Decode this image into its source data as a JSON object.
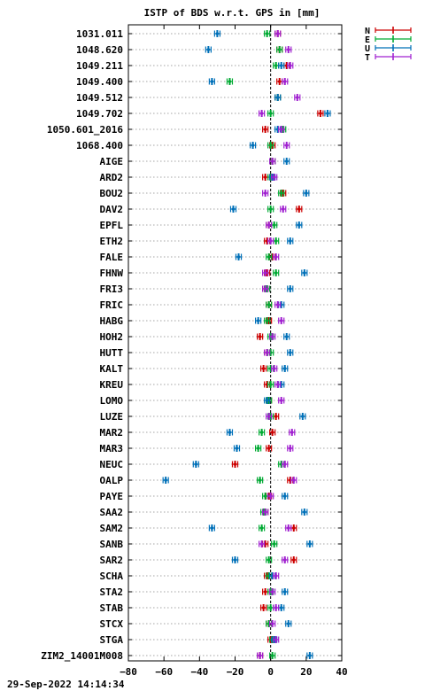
{
  "chart_data": {
    "type": "scatter",
    "title": "ISTP of BDS w.r.t. GPS in [mm]",
    "xlim": [
      -80,
      40
    ],
    "xticks": [
      -80,
      -60,
      -40,
      -20,
      0,
      20,
      40
    ],
    "grid": "horizontal dotted",
    "zero_line": "dashed vertical at 0",
    "legend_position": "top-right outside",
    "categories": [
      "1031.011",
      "1048.620",
      "1049.211",
      "1049.400",
      "1049.512",
      "1049.702",
      "1050.601_2016",
      "1068.400",
      "AIGE",
      "ARD2",
      "BOU2",
      "DAV2",
      "EPFL",
      "ETH2",
      "FALE",
      "FHNW",
      "FRI3",
      "FRIC",
      "HABG",
      "HOH2",
      "HUTT",
      "KALT",
      "KREU",
      "LOMO",
      "LUZE",
      "MAR2",
      "MAR3",
      "NEUC",
      "OALP",
      "PAYE",
      "SAA2",
      "SAM2",
      "SANB",
      "SAR2",
      "SCHA",
      "STA2",
      "STAB",
      "STCX",
      "STGA",
      "ZIM2_14001M008"
    ],
    "series": [
      {
        "name": "N",
        "color": "#cc0000",
        "values": [
          4,
          5,
          9,
          5,
          4,
          28,
          -3,
          1,
          1,
          -3,
          7,
          16,
          -1,
          -2,
          1,
          -2,
          -3,
          -1,
          -1,
          -6,
          -2,
          -4,
          -2,
          -1,
          3,
          1,
          -1,
          -20,
          11,
          -1,
          -3,
          13,
          -3,
          13,
          -2,
          -3,
          -4,
          -1,
          0,
          -6
        ]
      },
      {
        "name": "E",
        "color": "#00aa33",
        "values": [
          -2,
          5,
          3,
          -23,
          4,
          0,
          7,
          0,
          1,
          0,
          6,
          0,
          2,
          3,
          -1,
          3,
          -2,
          -1,
          -2,
          0,
          0,
          0,
          0,
          -1,
          0,
          -5,
          -7,
          6,
          -6,
          -3,
          -4,
          -5,
          2,
          -1,
          -1,
          0,
          0,
          -1,
          1,
          1
        ]
      },
      {
        "name": "U",
        "color": "#0070b8",
        "values": [
          -30,
          -35,
          6,
          -33,
          4,
          32,
          4,
          -10,
          9,
          1,
          20,
          -21,
          16,
          11,
          -18,
          19,
          11,
          6,
          -7,
          9,
          11,
          8,
          6,
          -2,
          18,
          -23,
          -19,
          -42,
          -59,
          8,
          19,
          -33,
          22,
          -20,
          1,
          8,
          6,
          10,
          2,
          22
        ]
      },
      {
        "name": "T",
        "color": "#a020d0",
        "values": [
          4,
          10,
          11,
          8,
          15,
          -5,
          6,
          9,
          1,
          2,
          -3,
          7,
          -1,
          0,
          3,
          -3,
          -3,
          4,
          6,
          1,
          -2,
          2,
          4,
          6,
          -1,
          12,
          11,
          8,
          13,
          0,
          -3,
          10,
          -5,
          8,
          3,
          1,
          3,
          1,
          3,
          -6
        ]
      }
    ],
    "error_bar_halfwidth": 1.5
  },
  "legend": {
    "items": [
      "N",
      "E",
      "U",
      "T"
    ]
  },
  "footer": {
    "timestamp": "29-Sep-2022 14:14:34"
  }
}
